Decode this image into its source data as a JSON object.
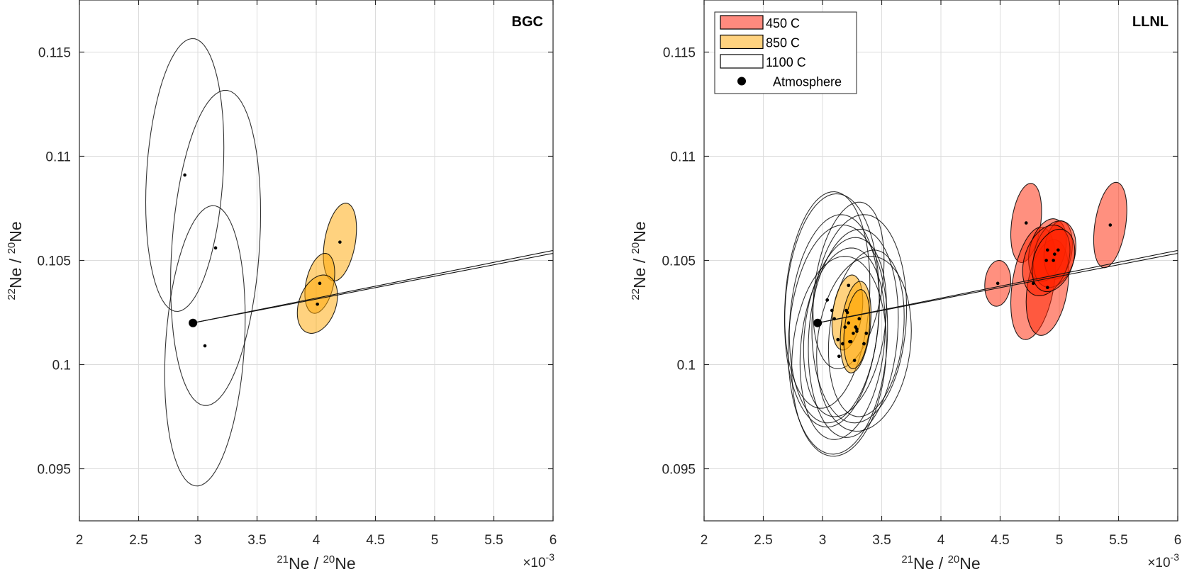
{
  "chart_data": [
    {
      "type": "scatter",
      "panel": "left",
      "title": "BGC",
      "xlabel": "21Ne / 20Ne",
      "xlabel_parts": {
        "sup1": "21",
        "base1": "Ne / ",
        "sup2": "20",
        "base2": "Ne"
      },
      "ylabel": "22Ne / 20Ne",
      "ylabel_parts": {
        "sup1": "22",
        "base1": "Ne / ",
        "sup2": "20",
        "base2": "Ne"
      },
      "x_exponent": "×10",
      "x_exponent_power": "-3",
      "xlim": [
        2,
        6
      ],
      "ylim": [
        0.0925,
        0.1175
      ],
      "xticks": [
        2,
        2.5,
        3,
        3.5,
        4,
        4.5,
        5,
        5.5,
        6
      ],
      "xtick_labels": [
        "2",
        "2.5",
        "3",
        "3.5",
        "4",
        "4.5",
        "5",
        "5.5",
        "6"
      ],
      "yticks": [
        0.095,
        0.1,
        0.105,
        0.11,
        0.115
      ],
      "ytick_labels": [
        "0.095",
        "0.1",
        "0.105",
        "0.11",
        "0.115"
      ],
      "grid": true,
      "atmosphere": {
        "x": 2.959,
        "y": 0.102
      },
      "lines": [
        {
          "from": [
            2.959,
            0.102
          ],
          "to": [
            6.0,
            0.10548
          ]
        },
        {
          "from": [
            2.959,
            0.102
          ],
          "to": [
            6.0,
            0.10534
          ]
        }
      ],
      "series": [
        {
          "name": "1100 C",
          "ellipses": [
            {
              "x": 2.89,
              "y": 0.1091,
              "sx": 0.33,
              "sy": 0.00655,
              "rho": 0.2
            },
            {
              "x": 3.15,
              "y": 0.1056,
              "sx": 0.38,
              "sy": 0.00757,
              "rho": 0.22
            },
            {
              "x": 3.06,
              "y": 0.1009,
              "sx": 0.34,
              "sy": 0.00673,
              "rho": 0.2
            }
          ]
        },
        {
          "name": "850 C",
          "ellipses": [
            {
              "x": 4.2,
              "y": 0.10588,
              "sx": 0.14,
              "sy": 0.00187,
              "rho": 0.35
            },
            {
              "x": 4.03,
              "y": 0.1039,
              "sx": 0.126,
              "sy": 0.00144,
              "rho": 0.35
            },
            {
              "x": 4.01,
              "y": 0.1029,
              "sx": 0.17,
              "sy": 0.0014,
              "rho": 0.3
            }
          ]
        }
      ]
    },
    {
      "type": "scatter",
      "panel": "right",
      "title": "LLNL",
      "xlabel": "21Ne / 20Ne",
      "xlabel_parts": {
        "sup1": "21",
        "base1": "Ne / ",
        "sup2": "20",
        "base2": "Ne"
      },
      "ylabel": "22Ne / 20Ne",
      "ylabel_parts": {
        "sup1": "22",
        "base1": "Ne / ",
        "sup2": "20",
        "base2": "Ne"
      },
      "x_exponent": "×10",
      "x_exponent_power": "-3",
      "xlim": [
        2,
        6
      ],
      "ylim": [
        0.0925,
        0.1175
      ],
      "xticks": [
        2,
        2.5,
        3,
        3.5,
        4,
        4.5,
        5,
        5.5,
        6
      ],
      "xtick_labels": [
        "2",
        "2.5",
        "3",
        "3.5",
        "4",
        "4.5",
        "5",
        "5.5",
        "6"
      ],
      "yticks": [
        0.095,
        0.1,
        0.105,
        0.11,
        0.115
      ],
      "ytick_labels": [
        "0.095",
        "0.1",
        "0.105",
        "0.11",
        "0.115"
      ],
      "grid": true,
      "legend": {
        "placement": "top-left",
        "entries": [
          {
            "label": "450 C",
            "kind": "patch",
            "color": "#ff8a7e"
          },
          {
            "label": "850 C",
            "kind": "patch",
            "color": "#ffd27f"
          },
          {
            "label": "1100 C",
            "kind": "patch",
            "color": "#ffffff"
          },
          {
            "label": "Atmosphere",
            "kind": "marker",
            "color": "#000000"
          }
        ]
      },
      "atmosphere": {
        "x": 2.959,
        "y": 0.102
      },
      "lines": [
        {
          "from": [
            2.959,
            0.102
          ],
          "to": [
            6.0,
            0.10548
          ]
        },
        {
          "from": [
            2.959,
            0.102
          ],
          "to": [
            6.0,
            0.10534
          ]
        }
      ],
      "series": [
        {
          "name": "1100 C",
          "ellipses": [
            {
              "x": 3.04,
              "y": 0.1031,
              "sx": 0.36,
              "sy": 0.0052,
              "rho": 0.15
            },
            {
              "x": 3.08,
              "y": 0.1026,
              "sx": 0.4,
              "sy": 0.0056,
              "rho": 0.1
            },
            {
              "x": 3.1,
              "y": 0.1022,
              "sx": 0.38,
              "sy": 0.005,
              "rho": 0.15
            },
            {
              "x": 3.13,
              "y": 0.1012,
              "sx": 0.42,
              "sy": 0.0055,
              "rho": 0.1
            },
            {
              "x": 3.14,
              "y": 0.1004,
              "sx": 0.4,
              "sy": 0.0048,
              "rho": 0.12
            },
            {
              "x": 3.17,
              "y": 0.101,
              "sx": 0.36,
              "sy": 0.0046,
              "rho": 0.2
            },
            {
              "x": 3.19,
              "y": 0.1018,
              "sx": 0.35,
              "sy": 0.0043,
              "rho": 0.25
            },
            {
              "x": 3.22,
              "y": 0.1038,
              "sx": 0.3,
              "sy": 0.004,
              "rho": 0.3
            },
            {
              "x": 3.26,
              "y": 0.1015,
              "sx": 0.38,
              "sy": 0.005,
              "rho": 0.15
            },
            {
              "x": 3.31,
              "y": 0.1022,
              "sx": 0.4,
              "sy": 0.005,
              "rho": 0.1
            },
            {
              "x": 3.35,
              "y": 0.101,
              "sx": 0.4,
              "sy": 0.0042,
              "rho": 0.15
            },
            {
              "x": 3.37,
              "y": 0.1015,
              "sx": 0.32,
              "sy": 0.004,
              "rho": 0.2
            }
          ],
          "points": [
            {
              "x": 3.04,
              "y": 0.1031
            },
            {
              "x": 3.08,
              "y": 0.1026
            },
            {
              "x": 3.1,
              "y": 0.1022
            },
            {
              "x": 3.13,
              "y": 0.1012
            },
            {
              "x": 3.14,
              "y": 0.1004
            },
            {
              "x": 3.17,
              "y": 0.101
            },
            {
              "x": 3.19,
              "y": 0.1018
            },
            {
              "x": 3.22,
              "y": 0.1038
            },
            {
              "x": 3.23,
              "y": 0.1011
            },
            {
              "x": 3.35,
              "y": 0.101
            },
            {
              "x": 3.37,
              "y": 0.1015
            },
            {
              "x": 3.27,
              "y": 0.1002
            }
          ]
        },
        {
          "name": "850 C",
          "ellipses": [
            {
              "x": 3.21,
              "y": 0.1025,
              "sx": 0.13,
              "sy": 0.0018,
              "rho": 0.3
            },
            {
              "x": 3.28,
              "y": 0.1018,
              "sx": 0.13,
              "sy": 0.0022,
              "rho": 0.3
            },
            {
              "x": 3.29,
              "y": 0.1017,
              "sx": 0.11,
              "sy": 0.0019,
              "rho": 0.3
            }
          ],
          "points": [
            {
              "x": 3.2,
              "y": 0.1026
            },
            {
              "x": 3.22,
              "y": 0.102
            },
            {
              "x": 3.28,
              "y": 0.1018
            },
            {
              "x": 3.29,
              "y": 0.1016
            },
            {
              "x": 3.31,
              "y": 0.1022
            },
            {
              "x": 3.24,
              "y": 0.1011
            }
          ]
        },
        {
          "name": "450 C",
          "ellipses": [
            {
              "x": 4.48,
              "y": 0.1039,
              "sx": 0.11,
              "sy": 0.0011,
              "rho": 0.1
            },
            {
              "x": 4.72,
              "y": 0.1068,
              "sx": 0.13,
              "sy": 0.0019,
              "rho": 0.3
            },
            {
              "x": 4.78,
              "y": 0.1039,
              "sx": 0.19,
              "sy": 0.0027,
              "rho": 0.35
            },
            {
              "x": 4.9,
              "y": 0.1037,
              "sx": 0.18,
              "sy": 0.0023,
              "rho": 0.3
            },
            {
              "x": 4.9,
              "y": 0.1055,
              "sx": 0.16,
              "sy": 0.0015,
              "rho": 0.3
            },
            {
              "x": 4.99,
              "y": 0.1055,
              "sx": 0.12,
              "sy": 0.0014,
              "rho": 0.2
            },
            {
              "x": 4.96,
              "y": 0.1053,
              "sx": 0.18,
              "sy": 0.0016,
              "rho": 0.25
            },
            {
              "x": 4.89,
              "y": 0.105,
              "sx": 0.2,
              "sy": 0.0017,
              "rho": 0.3
            },
            {
              "x": 4.95,
              "y": 0.105,
              "sx": 0.18,
              "sy": 0.0015,
              "rho": 0.3
            },
            {
              "x": 5.43,
              "y": 0.1067,
              "sx": 0.14,
              "sy": 0.00205,
              "rho": 0.35
            }
          ]
        }
      ]
    }
  ]
}
